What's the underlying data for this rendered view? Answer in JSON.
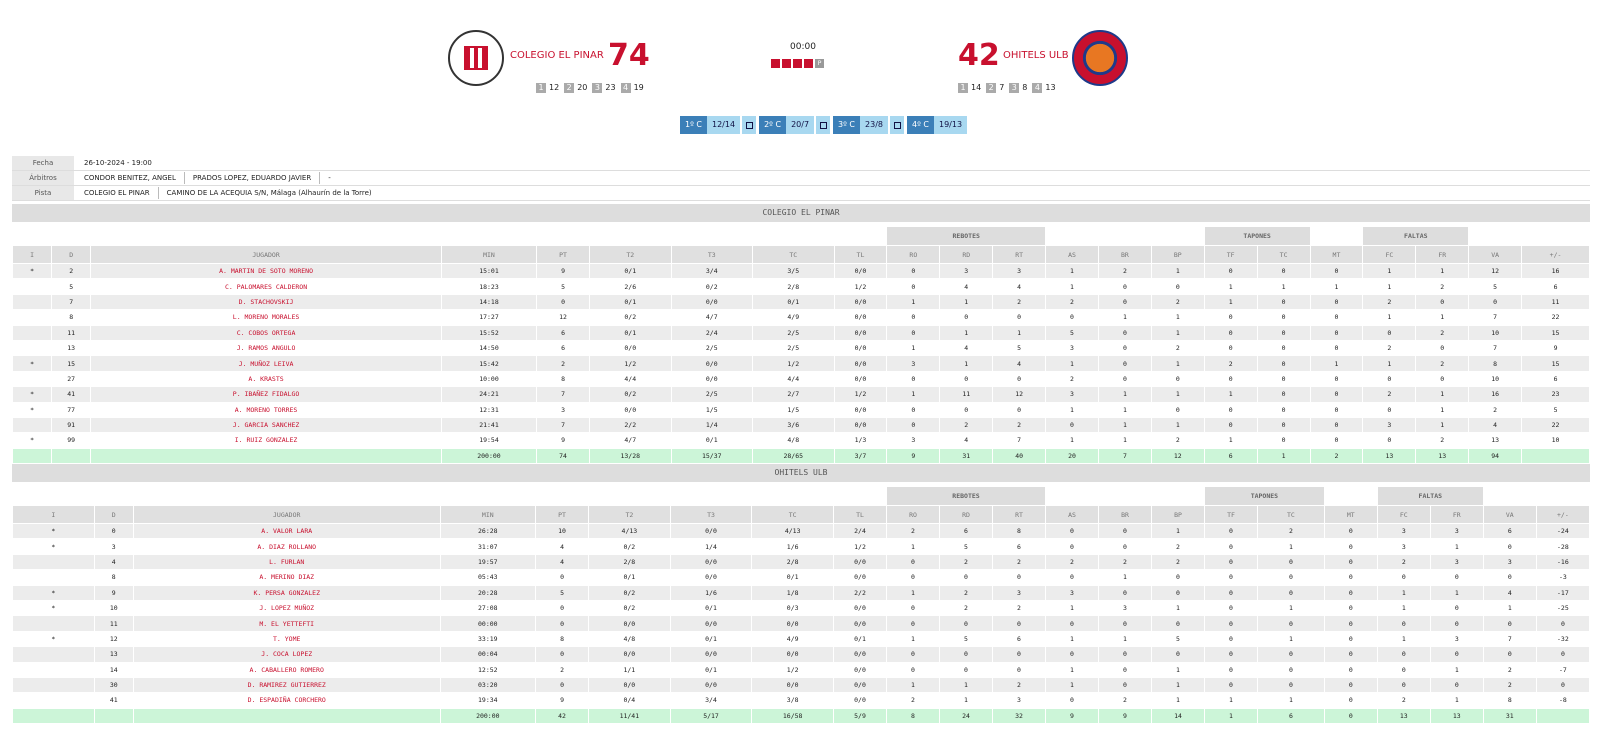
{
  "game": {
    "clock": "00:00",
    "period_label": "P",
    "home": {
      "name": "COLEGIO EL PINAR",
      "score": "74",
      "timeouts": [
        {
          "n": "1",
          "v": "12"
        },
        {
          "n": "2",
          "v": "20"
        },
        {
          "n": "3",
          "v": "23"
        },
        {
          "n": "4",
          "v": "19"
        }
      ]
    },
    "away": {
      "name": "OHITELS ULB",
      "score": "42",
      "timeouts": [
        {
          "n": "1",
          "v": "14"
        },
        {
          "n": "2",
          "v": "7"
        },
        {
          "n": "3",
          "v": "8"
        },
        {
          "n": "4",
          "v": "13"
        }
      ]
    },
    "quarters": [
      {
        "label": "1º C",
        "score": "12/14"
      },
      {
        "label": "2º C",
        "score": "20/7"
      },
      {
        "label": "3º C",
        "score": "23/8"
      },
      {
        "label": "4º C",
        "score": "19/13"
      }
    ]
  },
  "info": {
    "fecha_label": "Fecha",
    "fecha": "26-10-2024 - 19:00",
    "arbitros_label": "Árbitros",
    "arbitro1": "CONDOR BENITEZ, ANGEL",
    "arbitro2": "PRADOS LOPEZ, EDUARDO JAVIER",
    "arbitro3": "-",
    "pista_label": "Pista",
    "pista_name": "COLEGIO EL PINAR",
    "pista_address": "CAMINO DE LA ACEQUIA S/N, Málaga (Alhaurín de la Torre)"
  },
  "headers": {
    "groups": {
      "rebotes": "REBOTES",
      "tapones": "TAPONES",
      "faltas": "FALTAS"
    },
    "cols": [
      "I",
      "D",
      "JUGADOR",
      "MIN",
      "PT",
      "T2",
      "T3",
      "TC",
      "TL",
      "RO",
      "RD",
      "RT",
      "AS",
      "BR",
      "BP",
      "TF",
      "TC",
      "MT",
      "FC",
      "FR",
      "VA",
      "+/-"
    ]
  },
  "teams": [
    {
      "name": "COLEGIO EL PINAR",
      "rows": [
        [
          "*",
          "2",
          "A. MARTIN DE SOTO MORENO",
          "15:01",
          "9",
          "0/1",
          "3/4",
          "3/5",
          "0/0",
          "0",
          "3",
          "3",
          "1",
          "2",
          "1",
          "0",
          "0",
          "0",
          "1",
          "1",
          "12",
          "16"
        ],
        [
          "",
          "5",
          "C. PALOMARES CALDERON",
          "18:23",
          "5",
          "2/6",
          "0/2",
          "2/8",
          "1/2",
          "0",
          "4",
          "4",
          "1",
          "0",
          "0",
          "1",
          "1",
          "1",
          "1",
          "2",
          "5",
          "6"
        ],
        [
          "",
          "7",
          "D. STACHOVSKIJ",
          "14:18",
          "0",
          "0/1",
          "0/0",
          "0/1",
          "0/0",
          "1",
          "1",
          "2",
          "2",
          "0",
          "2",
          "1",
          "0",
          "0",
          "2",
          "0",
          "0",
          "11"
        ],
        [
          "",
          "8",
          "L. MORENO MORALES",
          "17:27",
          "12",
          "0/2",
          "4/7",
          "4/9",
          "0/0",
          "0",
          "0",
          "0",
          "0",
          "1",
          "1",
          "0",
          "0",
          "0",
          "1",
          "1",
          "7",
          "22"
        ],
        [
          "",
          "11",
          "C. COBOS ORTEGA",
          "15:52",
          "6",
          "0/1",
          "2/4",
          "2/5",
          "0/0",
          "0",
          "1",
          "1",
          "5",
          "0",
          "1",
          "0",
          "0",
          "0",
          "0",
          "2",
          "10",
          "15"
        ],
        [
          "",
          "13",
          "J. RAMOS ANGULO",
          "14:50",
          "6",
          "0/0",
          "2/5",
          "2/5",
          "0/0",
          "1",
          "4",
          "5",
          "3",
          "0",
          "2",
          "0",
          "0",
          "0",
          "2",
          "0",
          "7",
          "9"
        ],
        [
          "*",
          "15",
          "J. MUÑOZ LEIVA",
          "15:42",
          "2",
          "1/2",
          "0/0",
          "1/2",
          "0/0",
          "3",
          "1",
          "4",
          "1",
          "0",
          "1",
          "2",
          "0",
          "1",
          "1",
          "2",
          "8",
          "15"
        ],
        [
          "",
          "27",
          "A. KRASTS",
          "10:00",
          "8",
          "4/4",
          "0/0",
          "4/4",
          "0/0",
          "0",
          "0",
          "0",
          "2",
          "0",
          "0",
          "0",
          "0",
          "0",
          "0",
          "0",
          "10",
          "6"
        ],
        [
          "*",
          "41",
          "P. IBAÑEZ FIDALGO",
          "24:21",
          "7",
          "0/2",
          "2/5",
          "2/7",
          "1/2",
          "1",
          "11",
          "12",
          "3",
          "1",
          "1",
          "1",
          "0",
          "0",
          "2",
          "1",
          "16",
          "23"
        ],
        [
          "*",
          "77",
          "A. MORENO TORRES",
          "12:31",
          "3",
          "0/0",
          "1/5",
          "1/5",
          "0/0",
          "0",
          "0",
          "0",
          "1",
          "1",
          "0",
          "0",
          "0",
          "0",
          "0",
          "1",
          "2",
          "5"
        ],
        [
          "",
          "91",
          "J. GARCIA SANCHEZ",
          "21:41",
          "7",
          "2/2",
          "1/4",
          "3/6",
          "0/0",
          "0",
          "2",
          "2",
          "0",
          "1",
          "1",
          "0",
          "0",
          "0",
          "3",
          "1",
          "4",
          "22"
        ],
        [
          "*",
          "99",
          "I. RUIZ GONZALEZ",
          "19:54",
          "9",
          "4/7",
          "0/1",
          "4/8",
          "1/3",
          "3",
          "4",
          "7",
          "1",
          "1",
          "2",
          "1",
          "0",
          "0",
          "0",
          "2",
          "13",
          "10"
        ]
      ],
      "total": [
        "",
        "",
        "",
        "200:00",
        "74",
        "13/28",
        "15/37",
        "28/65",
        "3/7",
        "9",
        "31",
        "40",
        "20",
        "7",
        "12",
        "6",
        "1",
        "2",
        "13",
        "13",
        "94",
        ""
      ]
    },
    {
      "name": "OHITELS ULB",
      "rows": [
        [
          "*",
          "0",
          "A. VALOR LARA",
          "26:28",
          "10",
          "4/13",
          "0/0",
          "4/13",
          "2/4",
          "2",
          "6",
          "8",
          "0",
          "0",
          "1",
          "0",
          "2",
          "0",
          "3",
          "3",
          "6",
          "-24"
        ],
        [
          "*",
          "3",
          "A. DIAZ ROLLANO",
          "31:07",
          "4",
          "0/2",
          "1/4",
          "1/6",
          "1/2",
          "1",
          "5",
          "6",
          "0",
          "0",
          "2",
          "0",
          "1",
          "0",
          "3",
          "1",
          "0",
          "-28"
        ],
        [
          "",
          "4",
          "L. FURLAN",
          "19:57",
          "4",
          "2/8",
          "0/0",
          "2/8",
          "0/0",
          "0",
          "2",
          "2",
          "2",
          "2",
          "2",
          "0",
          "0",
          "0",
          "2",
          "3",
          "3",
          "-16"
        ],
        [
          "",
          "8",
          "A. MERINO DIAZ",
          "05:43",
          "0",
          "0/1",
          "0/0",
          "0/1",
          "0/0",
          "0",
          "0",
          "0",
          "0",
          "1",
          "0",
          "0",
          "0",
          "0",
          "0",
          "0",
          "0",
          "-3"
        ],
        [
          "*",
          "9",
          "K. PERSA GONZALEZ",
          "20:28",
          "5",
          "0/2",
          "1/6",
          "1/8",
          "2/2",
          "1",
          "2",
          "3",
          "3",
          "0",
          "0",
          "0",
          "0",
          "0",
          "1",
          "1",
          "4",
          "-17"
        ],
        [
          "*",
          "10",
          "J. LOPEZ MUÑOZ",
          "27:08",
          "0",
          "0/2",
          "0/1",
          "0/3",
          "0/0",
          "0",
          "2",
          "2",
          "1",
          "3",
          "1",
          "0",
          "1",
          "0",
          "1",
          "0",
          "1",
          "-25"
        ],
        [
          "",
          "11",
          "M. EL YETTEFTI",
          "00:00",
          "0",
          "0/0",
          "0/0",
          "0/0",
          "0/0",
          "0",
          "0",
          "0",
          "0",
          "0",
          "0",
          "0",
          "0",
          "0",
          "0",
          "0",
          "0",
          "0"
        ],
        [
          "*",
          "12",
          "T. YOME",
          "33:19",
          "8",
          "4/8",
          "0/1",
          "4/9",
          "0/1",
          "1",
          "5",
          "6",
          "1",
          "1",
          "5",
          "0",
          "1",
          "0",
          "1",
          "3",
          "7",
          "-32"
        ],
        [
          "",
          "13",
          "J. COCA LOPEZ",
          "00:04",
          "0",
          "0/0",
          "0/0",
          "0/0",
          "0/0",
          "0",
          "0",
          "0",
          "0",
          "0",
          "0",
          "0",
          "0",
          "0",
          "0",
          "0",
          "0",
          "0"
        ],
        [
          "",
          "14",
          "A. CABALLERO ROMERO",
          "12:52",
          "2",
          "1/1",
          "0/1",
          "1/2",
          "0/0",
          "0",
          "0",
          "0",
          "1",
          "0",
          "1",
          "0",
          "0",
          "0",
          "0",
          "1",
          "2",
          "-7"
        ],
        [
          "",
          "30",
          "D. RAMIREZ GUTIERREZ",
          "03:20",
          "0",
          "0/0",
          "0/0",
          "0/0",
          "0/0",
          "1",
          "1",
          "2",
          "1",
          "0",
          "1",
          "0",
          "0",
          "0",
          "0",
          "0",
          "2",
          "0"
        ],
        [
          "",
          "41",
          "D. ESPADIÑA CORCHERO",
          "19:34",
          "9",
          "0/4",
          "3/4",
          "3/8",
          "0/0",
          "2",
          "1",
          "3",
          "0",
          "2",
          "1",
          "1",
          "1",
          "0",
          "2",
          "1",
          "8",
          "-8"
        ]
      ],
      "total": [
        "",
        "",
        "",
        "200:00",
        "42",
        "11/41",
        "5/17",
        "16/58",
        "5/9",
        "8",
        "24",
        "32",
        "9",
        "9",
        "14",
        "1",
        "6",
        "0",
        "13",
        "13",
        "31",
        ""
      ]
    }
  ]
}
